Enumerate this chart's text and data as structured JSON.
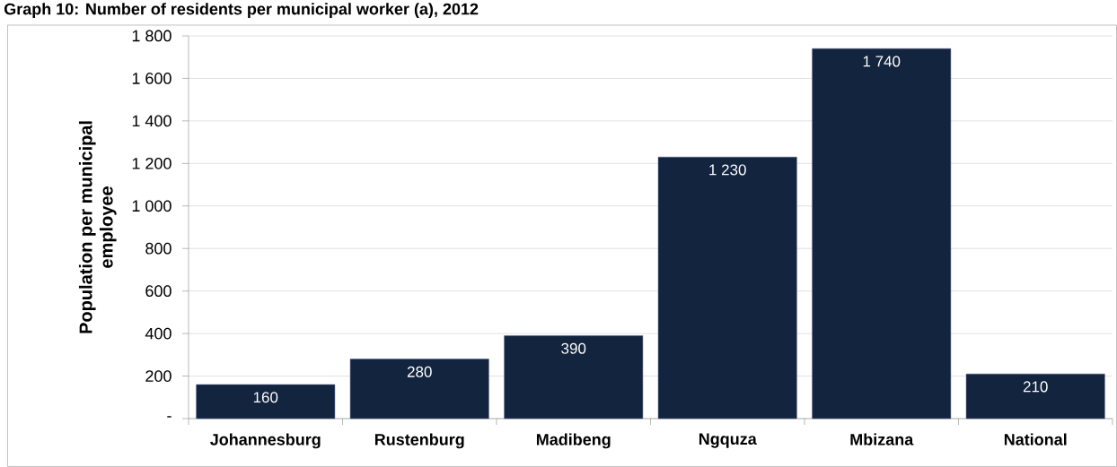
{
  "chart_data": {
    "type": "bar",
    "title": "Graph 10: Number of residents per municipal worker (a), 2012",
    "ylabel": "Population per municipal employee",
    "categories": [
      "Johannesburg",
      "Rustenburg",
      "Madibeng",
      "Ngquza",
      "Mbizana",
      "National"
    ],
    "values": [
      160,
      280,
      390,
      1230,
      1740,
      210
    ],
    "value_labels": [
      "160",
      "280",
      "390",
      "1 230",
      "1 740",
      "210"
    ],
    "color": "#13243f",
    "ylim": [
      0,
      1800
    ],
    "yticks": [
      {
        "value": 0,
        "label": "-"
      },
      200,
      400,
      600,
      800,
      {
        "value": 1000,
        "label": "1 000"
      },
      {
        "value": 1200,
        "label": "1 200"
      },
      {
        "value": 1400,
        "label": "1 400"
      },
      {
        "value": 1600,
        "label": "1 600"
      },
      {
        "value": 1800,
        "label": "1 800"
      }
    ],
    "grid": "y"
  }
}
